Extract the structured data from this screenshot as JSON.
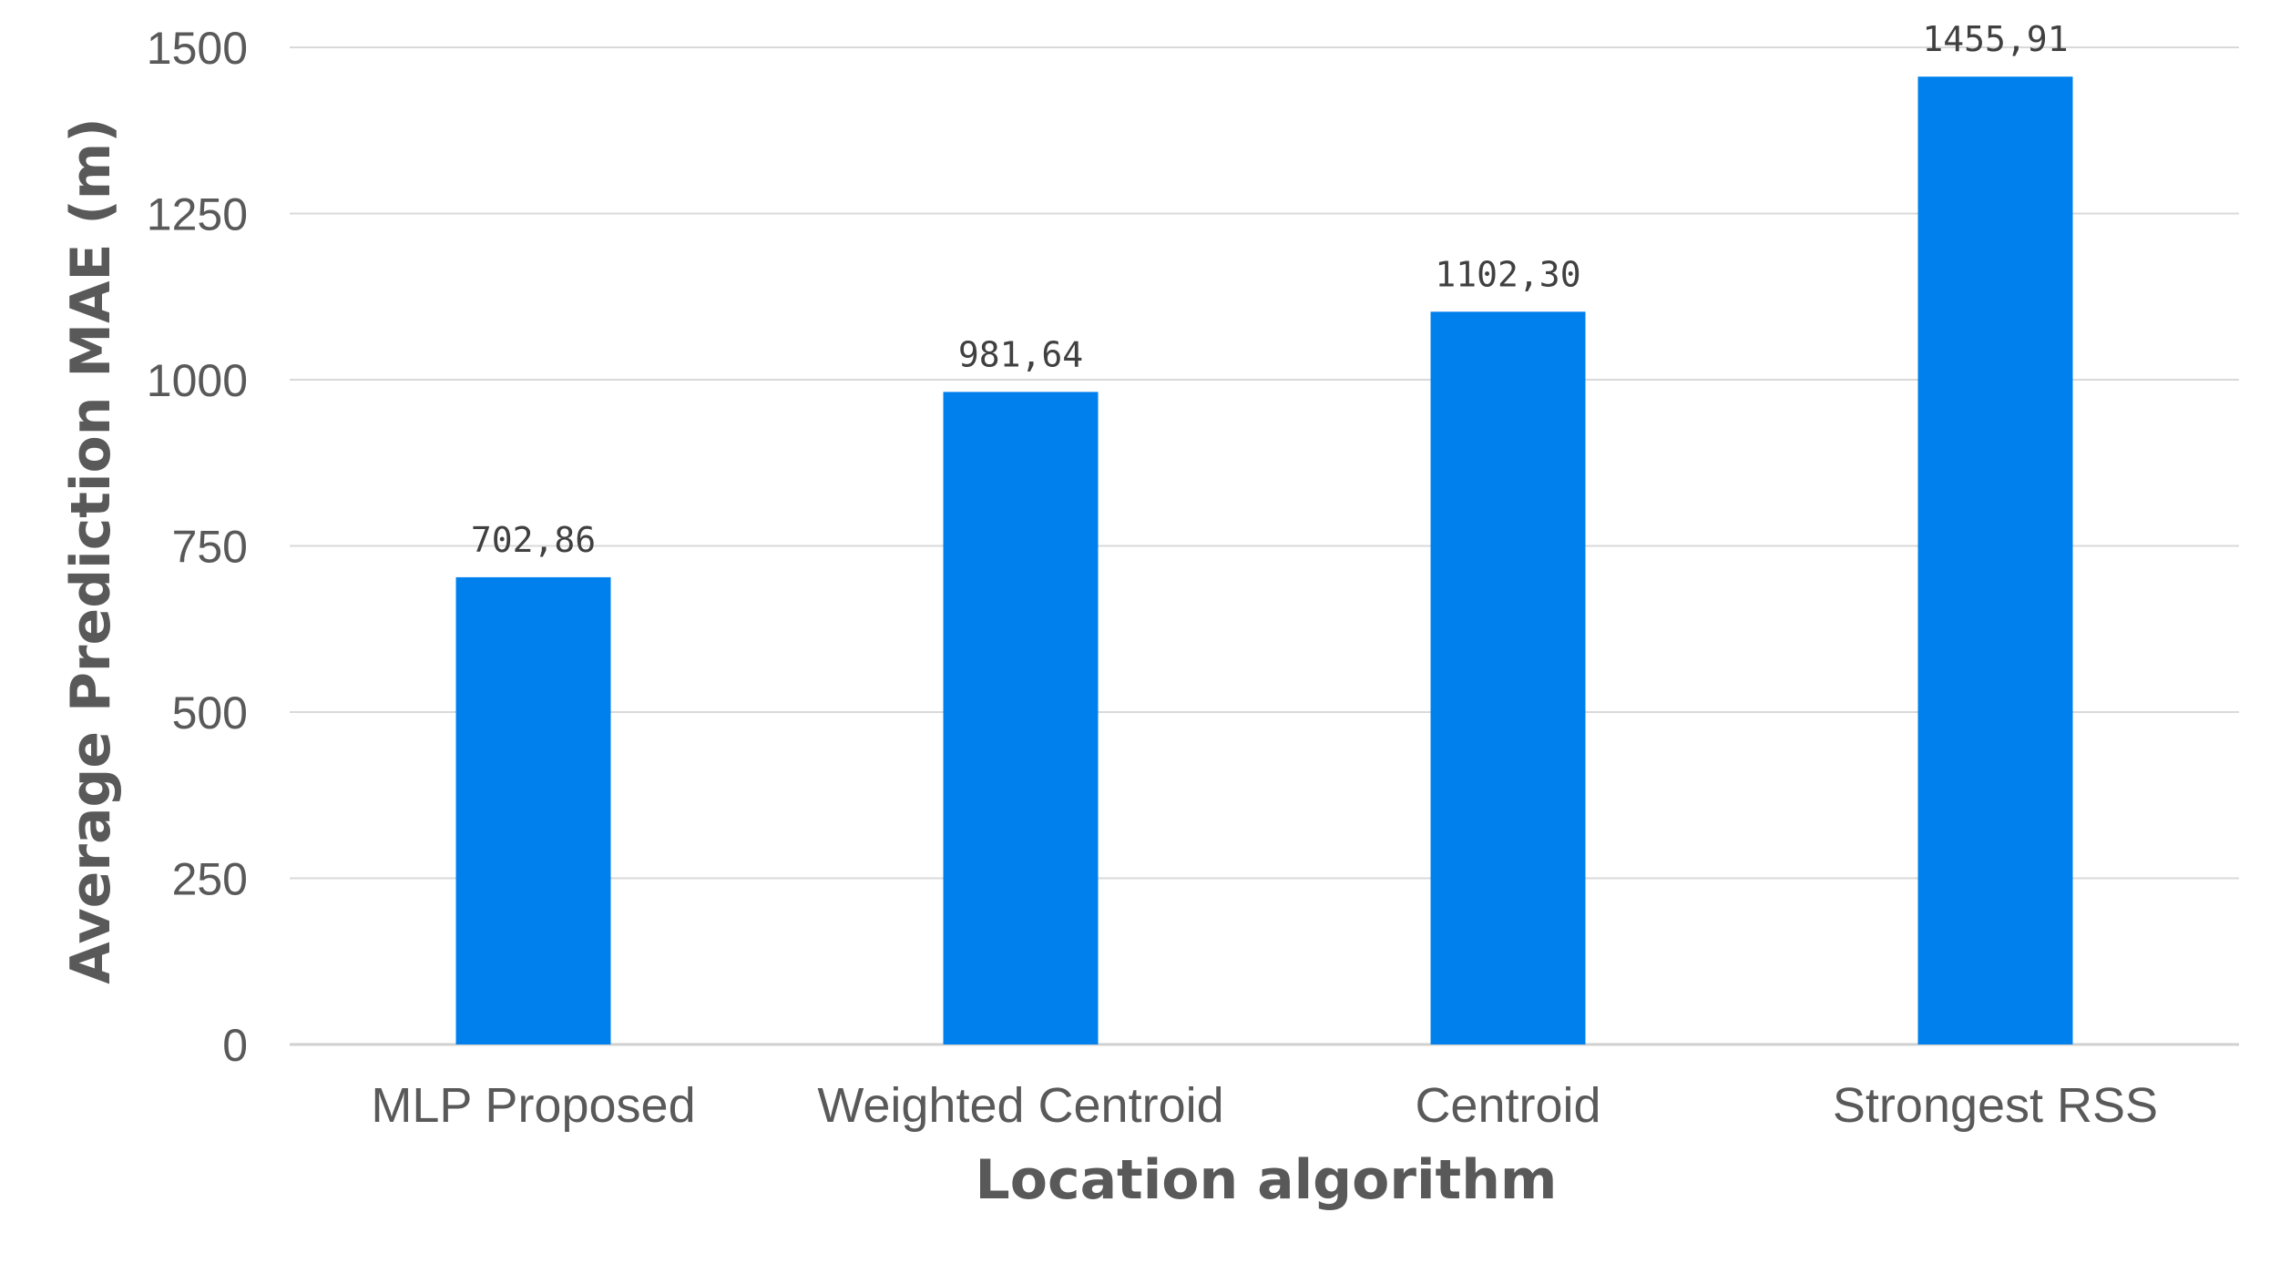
{
  "chart_data": {
    "type": "bar",
    "categories": [
      "MLP Proposed",
      "Weighted Centroid",
      "Centroid",
      "Strongest RSS"
    ],
    "values": [
      702.86,
      981.64,
      1102.3,
      1455.91
    ],
    "data_labels": [
      "702,86",
      "981,64",
      "1102,30",
      "1455,91"
    ],
    "title": "",
    "xlabel": "Location algorithm",
    "ylabel": "Average Prediction MAE (m)",
    "ylim": [
      0,
      1500
    ],
    "yticks": [
      0,
      250,
      500,
      750,
      1000,
      1250,
      1500
    ],
    "grid": true,
    "legend": "none",
    "bar_color": "#0080ED"
  }
}
